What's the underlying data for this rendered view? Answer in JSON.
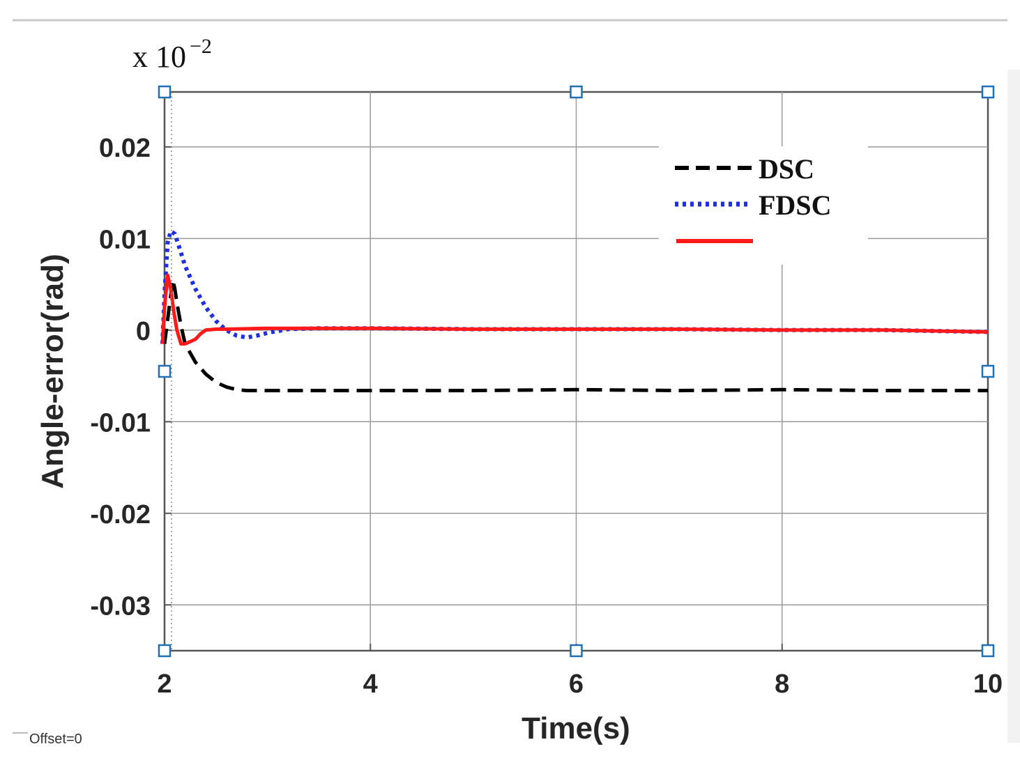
{
  "chart_data": {
    "type": "line",
    "xlabel": "Time(s)",
    "ylabel": "Angle-error(rad)",
    "exponent_label": "x 10",
    "exponent_power": "−2",
    "offset_label": "Offset=0",
    "xlim": [
      2,
      10
    ],
    "ylim": [
      -0.035,
      0.026
    ],
    "x_ticks": [
      2,
      4,
      6,
      8,
      10
    ],
    "x_tick_labels": [
      "2",
      "4",
      "6",
      "8",
      "10"
    ],
    "y_ticks": [
      0.02,
      0.01,
      0,
      -0.01,
      -0.02,
      -0.03
    ],
    "y_tick_labels": [
      "0.02",
      "0.01",
      "0",
      "-0.01",
      "-0.02",
      "-0.03"
    ],
    "grid": true,
    "legend_position": "top-right",
    "series": [
      {
        "name": "DSC",
        "color": "#000000",
        "style": "dashed",
        "x": [
          2.0,
          2.04,
          2.08,
          2.1,
          2.12,
          2.16,
          2.2,
          2.3,
          2.4,
          2.5,
          2.6,
          2.7,
          2.8,
          3.0,
          3.5,
          4,
          5,
          6,
          7,
          8,
          9,
          10
        ],
        "y": [
          -0.0015,
          0.002,
          0.0055,
          0.0045,
          0.003,
          0.0005,
          -0.0015,
          -0.0035,
          -0.0048,
          -0.0057,
          -0.0062,
          -0.0065,
          -0.0066,
          -0.0066,
          -0.0066,
          -0.0066,
          -0.0066,
          -0.0065,
          -0.0066,
          -0.0065,
          -0.0066,
          -0.0066
        ]
      },
      {
        "name": "FDSC",
        "color": "#1f2fe0",
        "style": "dotted",
        "x": [
          1.98,
          2.0,
          2.03,
          2.06,
          2.1,
          2.15,
          2.2,
          2.3,
          2.4,
          2.5,
          2.6,
          2.7,
          2.8,
          2.9,
          3.0,
          3.2,
          3.5,
          4,
          5,
          6,
          7,
          8,
          9,
          10
        ],
        "y": [
          -0.0015,
          0.004,
          0.0095,
          0.0108,
          0.0105,
          0.0088,
          0.007,
          0.0045,
          0.0025,
          0.001,
          0.0,
          -0.0006,
          -0.0008,
          -0.0006,
          -0.0003,
          0.0001,
          0.0002,
          0.0002,
          0.0001,
          0.0001,
          0.0001,
          0.0,
          0.0,
          -0.0002
        ]
      },
      {
        "name": "",
        "color": "#ff1a1a",
        "style": "solid",
        "x": [
          1.98,
          2.0,
          2.03,
          2.06,
          2.09,
          2.12,
          2.16,
          2.2,
          2.3,
          2.35,
          2.4,
          2.5,
          2.6,
          3.0,
          4,
          5,
          6,
          7,
          8,
          9,
          10
        ],
        "y": [
          -0.0015,
          0.0025,
          0.006,
          0.0045,
          0.002,
          0.0,
          -0.0015,
          -0.0015,
          -0.001,
          -0.0004,
          0.0,
          0.0001,
          0.0001,
          0.0002,
          0.0002,
          0.0001,
          0.0001,
          0.0001,
          0.0,
          0.0,
          -0.0002
        ]
      }
    ]
  }
}
